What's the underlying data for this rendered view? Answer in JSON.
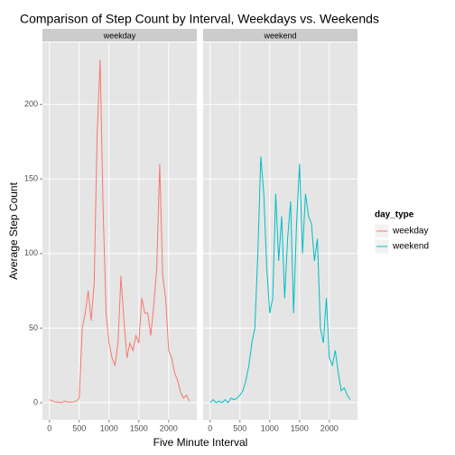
{
  "chart_data": {
    "type": "line",
    "title": "Comparison of Step Count by Interval, Weekdays vs. Weekends",
    "xlabel": "Five Minute Interval",
    "ylabel": "Average Step Count",
    "legend_title": "day_type",
    "facets": [
      "weekday",
      "weekend"
    ],
    "x": [
      0,
      50,
      100,
      150,
      200,
      250,
      300,
      350,
      400,
      450,
      500,
      550,
      600,
      650,
      700,
      750,
      800,
      850,
      900,
      950,
      1000,
      1050,
      1100,
      1150,
      1200,
      1250,
      1300,
      1350,
      1400,
      1450,
      1500,
      1550,
      1600,
      1650,
      1700,
      1750,
      1800,
      1850,
      1900,
      1950,
      2000,
      2050,
      2100,
      2150,
      2200,
      2250,
      2300,
      2350
    ],
    "series": [
      {
        "name": "weekday",
        "color": "#F8766D",
        "values": [
          2,
          1,
          0.5,
          0.3,
          0,
          1,
          0.5,
          0.3,
          0.5,
          1,
          3,
          50,
          60,
          75,
          55,
          80,
          180,
          230,
          130,
          60,
          40,
          30,
          25,
          40,
          85,
          55,
          30,
          40,
          35,
          45,
          40,
          70,
          60,
          60,
          45,
          65,
          90,
          160,
          85,
          70,
          35,
          30,
          20,
          15,
          7,
          3,
          5,
          1
        ]
      },
      {
        "name": "weekend",
        "color": "#00BFC4",
        "values": [
          0,
          2,
          0,
          1,
          0,
          2,
          0,
          3,
          2,
          3,
          5,
          8,
          15,
          25,
          40,
          50,
          100,
          165,
          140,
          90,
          60,
          70,
          140,
          95,
          125,
          70,
          110,
          135,
          60,
          120,
          160,
          100,
          140,
          125,
          120,
          95,
          110,
          50,
          40,
          70,
          30,
          25,
          35,
          20,
          8,
          10,
          5,
          2
        ]
      }
    ],
    "xlim": [
      -118,
      2473
    ],
    "ylim": [
      -11.5,
      241.5
    ],
    "xticks": [
      0,
      500,
      1000,
      1500,
      2000
    ],
    "yticks": [
      0,
      50,
      100,
      150,
      200
    ],
    "grid": true
  }
}
